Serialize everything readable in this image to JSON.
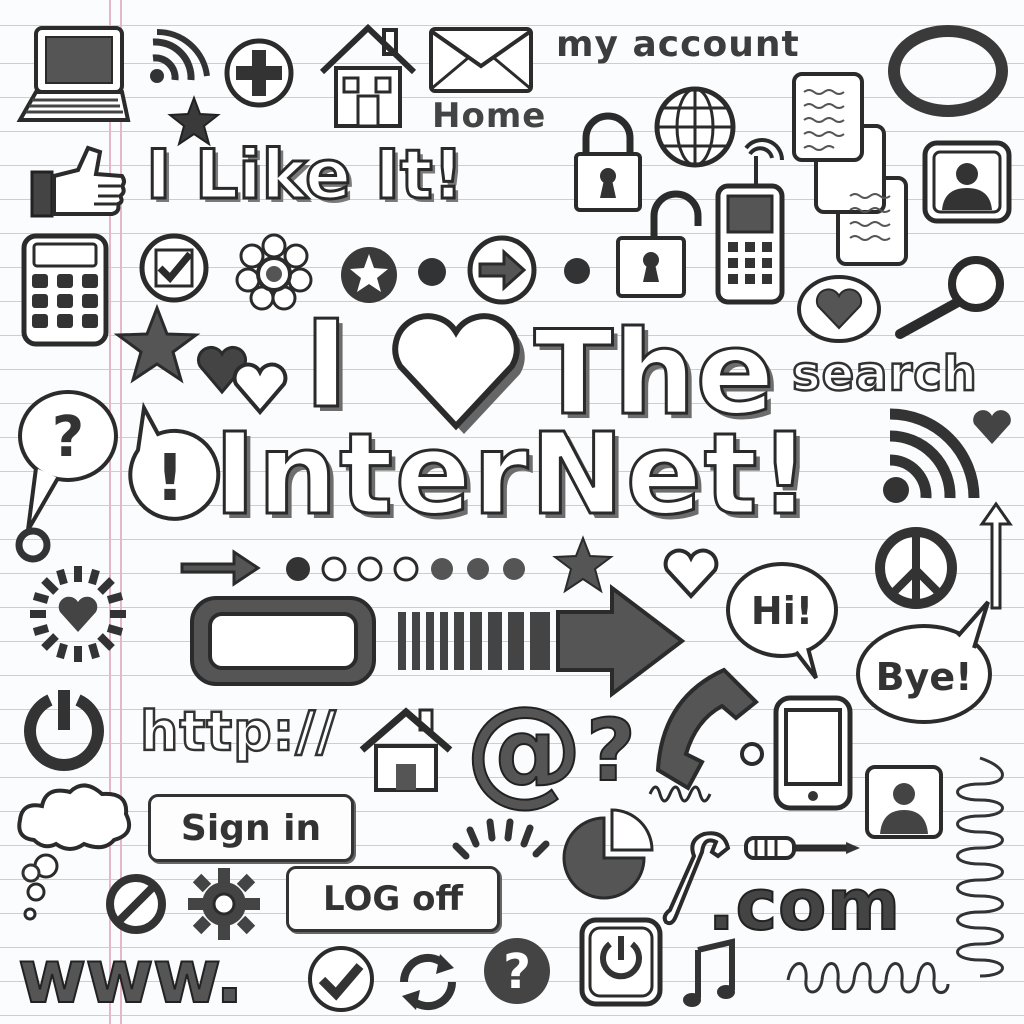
{
  "texts": {
    "my_account": "my account",
    "home": "Home",
    "i_like_it": "I Like It!",
    "search": "search",
    "headline_i": "I",
    "headline_the": "The",
    "headline_internet": "InterNet!",
    "http": "http://",
    "sign_in": "Sign in",
    "log_off": "LOG off",
    "dot_com": ".com",
    "www": "www.",
    "hi": "Hi!",
    "bye": "Bye!",
    "question_mark": "?",
    "exclamation_mark": "!",
    "at_sign": "@"
  },
  "colors": {
    "ink": "#2b2b2b",
    "rule_line": "#b9d3ea",
    "margin_line": "#e7b6c9",
    "paper": "#fbfcfd"
  },
  "icons": [
    "laptop-icon",
    "wifi-icon",
    "plus-circle-icon",
    "house-icon",
    "envelope-icon",
    "ring-icon",
    "star-icon",
    "thumbs-up-icon",
    "padlock-closed-icon",
    "padlock-open-icon",
    "globe-icon",
    "document-stack-icon",
    "user-profile-icon",
    "cell-phone-icon",
    "calculator-icon",
    "checkbox-circle-icon",
    "flower-icon",
    "star-circle-icon",
    "arrow-circle-icon",
    "heart-icon",
    "magnifier-icon",
    "speech-bubble-question-icon",
    "speech-bubble-exclamation-icon",
    "rss-icon",
    "peace-sign-icon",
    "up-arrow-icon",
    "sunburst-heart-icon",
    "power-icon",
    "blank-button-icon",
    "striped-arrow-icon",
    "telephone-icon",
    "tablet-icon",
    "cloud-icon",
    "pie-chart-icon",
    "wrench-icon",
    "screwdriver-icon",
    "gear-icon",
    "no-entry-icon",
    "check-circle-icon",
    "refresh-icon",
    "question-circle-icon",
    "music-note-icon",
    "spiral-icon"
  ]
}
